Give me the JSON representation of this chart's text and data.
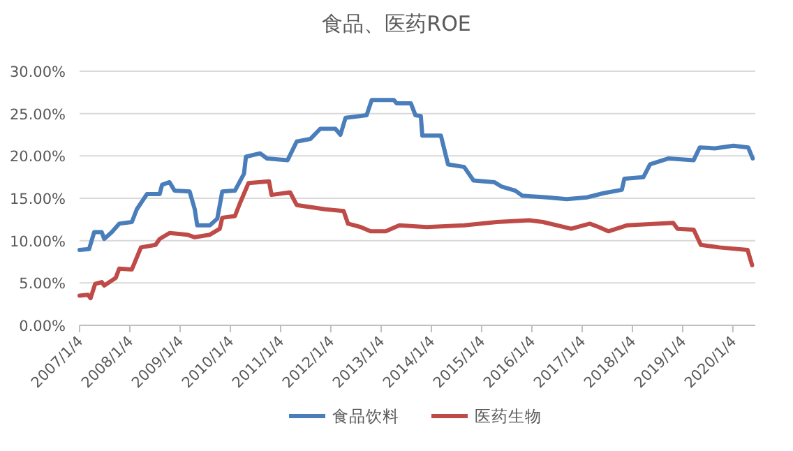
{
  "chart_data": {
    "type": "line",
    "title": "食品、医药ROE",
    "legend": "bottom",
    "grid": "y",
    "xlim": [
      "2007-01-04",
      "2020-06-15"
    ],
    "xticks": [
      {
        "value": "2007-01-04",
        "label": "2007/1/4"
      },
      {
        "value": "2008-01-04",
        "label": "2008/1/4"
      },
      {
        "value": "2009-01-04",
        "label": "2009/1/4"
      },
      {
        "value": "2010-01-04",
        "label": "2010/1/4"
      },
      {
        "value": "2011-01-04",
        "label": "2011/1/4"
      },
      {
        "value": "2012-01-04",
        "label": "2012/1/4"
      },
      {
        "value": "2013-01-04",
        "label": "2013/1/4"
      },
      {
        "value": "2014-01-04",
        "label": "2014/1/4"
      },
      {
        "value": "2015-01-04",
        "label": "2015/1/4"
      },
      {
        "value": "2016-01-04",
        "label": "2016/1/4"
      },
      {
        "value": "2017-01-04",
        "label": "2017/1/4"
      },
      {
        "value": "2018-01-04",
        "label": "2018/1/4"
      },
      {
        "value": "2019-01-04",
        "label": "2019/1/4"
      },
      {
        "value": "2020-01-04",
        "label": "2020/1/4"
      }
    ],
    "ylim": [
      0,
      30
    ],
    "yticks": [
      {
        "value": 0,
        "label": "0.00%"
      },
      {
        "value": 5,
        "label": "5.00%"
      },
      {
        "value": 10,
        "label": "10.00%"
      },
      {
        "value": 15,
        "label": "15.00%"
      },
      {
        "value": 20,
        "label": "20.00%"
      },
      {
        "value": 25,
        "label": "25.00%"
      },
      {
        "value": 30,
        "label": "30.00%"
      }
    ],
    "series": [
      {
        "name": "食品饮料",
        "color": "#4a7ebb",
        "x": [
          "2007-01-04",
          "2007-03-14",
          "2007-04-20",
          "2007-06-14",
          "2007-07-02",
          "2007-08-26",
          "2007-10-19",
          "2008-01-19",
          "2008-02-24",
          "2008-05-08",
          "2008-08-08",
          "2008-08-26",
          "2008-10-19",
          "2008-11-24",
          "2009-03-14",
          "2009-04-20",
          "2009-05-08",
          "2009-08-08",
          "2009-10-01",
          "2009-11-06",
          "2010-02-06",
          "2010-04-13",
          "2010-04-27",
          "2010-08-08",
          "2010-09-27",
          "2011-02-24",
          "2011-05-01",
          "2011-08-08",
          "2011-10-19",
          "2012-02-06",
          "2012-03-14",
          "2012-04-20",
          "2012-09-20",
          "2012-10-27",
          "2013-04-06",
          "2013-04-27",
          "2013-08-08",
          "2013-09-10",
          "2013-10-19",
          "2013-10-30",
          "2014-03-14",
          "2014-05-05",
          "2014-08-30",
          "2014-11-06",
          "2015-04-06",
          "2015-05-27",
          "2015-09-06",
          "2015-10-27",
          "2016-04-27",
          "2016-09-13",
          "2017-02-06",
          "2017-06-07",
          "2017-10-19",
          "2017-11-06",
          "2018-03-25",
          "2018-05-12",
          "2018-09-24",
          "2019-03-25",
          "2019-05-08",
          "2019-08-26",
          "2020-01-08",
          "2020-04-24",
          "2020-05-27"
        ],
        "values": [
          8.9,
          9.0,
          11,
          11,
          10.2,
          11,
          12,
          12.2,
          13.7,
          15.5,
          15.5,
          16.6,
          16.9,
          15.9,
          15.8,
          13.7,
          11.8,
          11.8,
          12.6,
          15.8,
          15.9,
          17.9,
          19.9,
          20.3,
          19.7,
          19.5,
          21.7,
          22,
          23.2,
          23.2,
          22.5,
          24.5,
          24.8,
          26.6,
          26.6,
          26.2,
          26.2,
          24.8,
          24.7,
          22.4,
          22.4,
          19,
          18.7,
          17.1,
          16.9,
          16.4,
          15.9,
          15.3,
          15.1,
          14.9,
          15.1,
          15.6,
          16,
          17.3,
          17.5,
          19,
          19.7,
          19.5,
          21,
          20.9,
          21.2,
          21,
          19.7
        ]
      },
      {
        "name": "医药生物",
        "color": "#be4b48",
        "x": [
          "2007-01-04",
          "2007-03-06",
          "2007-03-25",
          "2007-04-27",
          "2007-06-14",
          "2007-07-02",
          "2007-09-24",
          "2007-10-19",
          "2008-01-19",
          "2008-03-25",
          "2008-07-09",
          "2008-08-08",
          "2008-10-19",
          "2009-02-24",
          "2009-04-20",
          "2009-08-08",
          "2009-10-19",
          "2009-11-06",
          "2010-02-06",
          "2010-03-14",
          "2010-05-16",
          "2010-10-12",
          "2010-10-30",
          "2011-03-14",
          "2011-05-01",
          "2011-11-24",
          "2012-04-06",
          "2012-05-08",
          "2012-08-08",
          "2012-10-19",
          "2013-02-06",
          "2013-05-16",
          "2013-12-01",
          "2014-08-30",
          "2015-04-24",
          "2015-12-16",
          "2016-03-25",
          "2016-10-16",
          "2017-02-28",
          "2017-05-05",
          "2017-07-13",
          "2017-11-24",
          "2018-10-27",
          "2018-11-28",
          "2019-03-25",
          "2019-05-16",
          "2019-09-27",
          "2020-04-20",
          "2020-05-23"
        ],
        "values": [
          3.5,
          3.6,
          3.2,
          4.9,
          5.1,
          4.7,
          5.6,
          6.7,
          6.6,
          9.2,
          9.5,
          10.2,
          10.9,
          10.7,
          10.4,
          10.7,
          11.4,
          12.7,
          12.9,
          14.4,
          16.8,
          17,
          15.4,
          15.7,
          14.2,
          13.7,
          13.5,
          12,
          11.6,
          11.1,
          11.1,
          11.8,
          11.6,
          11.8,
          12.2,
          12.4,
          12.2,
          11.4,
          12,
          11.6,
          11.1,
          11.8,
          12.1,
          11.4,
          11.3,
          9.5,
          9.2,
          8.9,
          7.1
        ]
      }
    ]
  }
}
